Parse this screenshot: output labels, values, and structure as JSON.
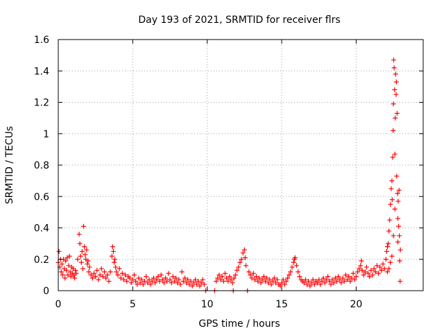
{
  "chart_data": {
    "type": "scatter",
    "title": "Day 193 of 2021, SRMTID for receiver flrs",
    "xlabel": "GPS time / hours",
    "ylabel": "SRMTID / TECUs",
    "xlim": [
      0,
      24.5
    ],
    "ylim": [
      0,
      1.6
    ],
    "x_ticks": [
      0,
      5,
      10,
      15,
      20
    ],
    "x_tick_labels": [
      "0",
      "5",
      "10",
      "15",
      "20"
    ],
    "y_ticks": [
      0,
      0.2,
      0.4,
      0.6,
      0.8,
      1.0,
      1.2,
      1.4,
      1.6
    ],
    "y_tick_labels": [
      "0",
      "0.2",
      "0.4",
      "0.6",
      "0.8",
      "1",
      "1.2",
      "1.4",
      "1.6"
    ],
    "grid": true,
    "marker": "plus",
    "series": [
      {
        "name": "flrs",
        "color": "#ff0000",
        "points": [
          [
            0.0,
            0.18
          ],
          [
            0.05,
            0.25
          ],
          [
            0.1,
            0.15
          ],
          [
            0.15,
            0.2
          ],
          [
            0.2,
            0.12
          ],
          [
            0.25,
            0.17
          ],
          [
            0.3,
            0.1
          ],
          [
            0.35,
            0.2
          ],
          [
            0.4,
            0.14
          ],
          [
            0.45,
            0.08
          ],
          [
            0.5,
            0.19
          ],
          [
            0.55,
            0.13
          ],
          [
            0.6,
            0.21
          ],
          [
            0.65,
            0.1
          ],
          [
            0.7,
            0.16
          ],
          [
            0.75,
            0.22
          ],
          [
            0.8,
            0.12
          ],
          [
            0.85,
            0.09
          ],
          [
            0.9,
            0.15
          ],
          [
            0.95,
            0.11
          ],
          [
            1.0,
            0.14
          ],
          [
            1.05,
            0.1
          ],
          [
            1.1,
            0.08
          ],
          [
            1.15,
            0.13
          ],
          [
            1.2,
            0.11
          ],
          [
            1.3,
            0.2
          ],
          [
            1.4,
            0.36
          ],
          [
            1.45,
            0.3
          ],
          [
            1.5,
            0.22
          ],
          [
            1.55,
            0.18
          ],
          [
            1.6,
            0.25
          ],
          [
            1.65,
            0.14
          ],
          [
            1.7,
            0.41
          ],
          [
            1.75,
            0.28
          ],
          [
            1.8,
            0.23
          ],
          [
            1.85,
            0.2
          ],
          [
            1.9,
            0.26
          ],
          [
            1.95,
            0.17
          ],
          [
            2.0,
            0.19
          ],
          [
            2.05,
            0.12
          ],
          [
            2.1,
            0.15
          ],
          [
            2.2,
            0.1
          ],
          [
            2.3,
            0.08
          ],
          [
            2.4,
            0.11
          ],
          [
            2.5,
            0.09
          ],
          [
            2.6,
            0.13
          ],
          [
            2.7,
            0.07
          ],
          [
            2.8,
            0.1
          ],
          [
            2.9,
            0.14
          ],
          [
            3.0,
            0.09
          ],
          [
            3.1,
            0.12
          ],
          [
            3.2,
            0.08
          ],
          [
            3.3,
            0.1
          ],
          [
            3.4,
            0.06
          ],
          [
            3.5,
            0.12
          ],
          [
            3.6,
            0.22
          ],
          [
            3.65,
            0.28
          ],
          [
            3.7,
            0.25
          ],
          [
            3.75,
            0.18
          ],
          [
            3.8,
            0.2
          ],
          [
            3.85,
            0.15
          ],
          [
            3.9,
            0.12
          ],
          [
            4.0,
            0.1
          ],
          [
            4.1,
            0.14
          ],
          [
            4.2,
            0.08
          ],
          [
            4.3,
            0.11
          ],
          [
            4.4,
            0.07
          ],
          [
            4.5,
            0.1
          ],
          [
            4.6,
            0.06
          ],
          [
            4.7,
            0.09
          ],
          [
            4.8,
            0.08
          ],
          [
            4.9,
            0.05
          ],
          [
            5.0,
            0.07
          ],
          [
            5.1,
            0.1
          ],
          [
            5.2,
            0.06
          ],
          [
            5.3,
            0.04
          ],
          [
            5.4,
            0.08
          ],
          [
            5.5,
            0.05
          ],
          [
            5.6,
            0.07
          ],
          [
            5.7,
            0.04
          ],
          [
            5.8,
            0.06
          ],
          [
            5.9,
            0.09
          ],
          [
            6.0,
            0.05
          ],
          [
            6.1,
            0.07
          ],
          [
            6.2,
            0.04
          ],
          [
            6.3,
            0.06
          ],
          [
            6.4,
            0.08
          ],
          [
            6.5,
            0.05
          ],
          [
            6.6,
            0.07
          ],
          [
            6.7,
            0.09
          ],
          [
            6.8,
            0.06
          ],
          [
            6.9,
            0.1
          ],
          [
            7.0,
            0.07
          ],
          [
            7.1,
            0.05
          ],
          [
            7.2,
            0.08
          ],
          [
            7.3,
            0.06
          ],
          [
            7.4,
            0.11
          ],
          [
            7.5,
            0.07
          ],
          [
            7.6,
            0.05
          ],
          [
            7.7,
            0.09
          ],
          [
            7.8,
            0.06
          ],
          [
            7.9,
            0.08
          ],
          [
            8.0,
            0.05
          ],
          [
            8.1,
            0.07
          ],
          [
            8.2,
            0.04
          ],
          [
            8.3,
            0.12
          ],
          [
            8.4,
            0.06
          ],
          [
            8.5,
            0.08
          ],
          [
            8.6,
            0.05
          ],
          [
            8.7,
            0.07
          ],
          [
            8.8,
            0.04
          ],
          [
            8.9,
            0.06
          ],
          [
            9.0,
            0.03
          ],
          [
            9.1,
            0.05
          ],
          [
            9.2,
            0.07
          ],
          [
            9.3,
            0.04
          ],
          [
            9.4,
            0.06
          ],
          [
            9.5,
            0.03
          ],
          [
            9.6,
            0.05
          ],
          [
            9.7,
            0.07
          ],
          [
            9.8,
            0.04
          ],
          [
            9.9,
            0.0
          ],
          [
            10.5,
            0.0
          ],
          [
            10.6,
            0.06
          ],
          [
            10.7,
            0.08
          ],
          [
            10.8,
            0.1
          ],
          [
            10.9,
            0.07
          ],
          [
            11.0,
            0.09
          ],
          [
            11.1,
            0.06
          ],
          [
            11.2,
            0.11
          ],
          [
            11.3,
            0.08
          ],
          [
            11.4,
            0.06
          ],
          [
            11.5,
            0.09
          ],
          [
            11.6,
            0.07
          ],
          [
            11.7,
            0.05
          ],
          [
            11.75,
            0.0
          ],
          [
            11.8,
            0.08
          ],
          [
            11.9,
            0.1
          ],
          [
            12.0,
            0.13
          ],
          [
            12.1,
            0.15
          ],
          [
            12.2,
            0.18
          ],
          [
            12.3,
            0.2
          ],
          [
            12.4,
            0.24
          ],
          [
            12.5,
            0.26
          ],
          [
            12.55,
            0.21
          ],
          [
            12.6,
            0.16
          ],
          [
            12.7,
            0.0
          ],
          [
            12.8,
            0.12
          ],
          [
            12.9,
            0.1
          ],
          [
            13.0,
            0.08
          ],
          [
            13.1,
            0.11
          ],
          [
            13.2,
            0.07
          ],
          [
            13.3,
            0.09
          ],
          [
            13.4,
            0.06
          ],
          [
            13.5,
            0.08
          ],
          [
            13.6,
            0.05
          ],
          [
            13.7,
            0.07
          ],
          [
            13.8,
            0.09
          ],
          [
            13.9,
            0.06
          ],
          [
            14.0,
            0.08
          ],
          [
            14.1,
            0.05
          ],
          [
            14.2,
            0.07
          ],
          [
            14.3,
            0.04
          ],
          [
            14.4,
            0.06
          ],
          [
            14.5,
            0.08
          ],
          [
            14.6,
            0.05
          ],
          [
            14.7,
            0.07
          ],
          [
            14.8,
            0.04
          ],
          [
            14.9,
            0.03
          ],
          [
            15.0,
            0.05
          ],
          [
            15.1,
            0.07
          ],
          [
            15.2,
            0.04
          ],
          [
            15.3,
            0.06
          ],
          [
            15.4,
            0.08
          ],
          [
            15.5,
            0.1
          ],
          [
            15.6,
            0.12
          ],
          [
            15.7,
            0.15
          ],
          [
            15.8,
            0.18
          ],
          [
            15.85,
            0.2
          ],
          [
            15.9,
            0.21
          ],
          [
            16.0,
            0.16
          ],
          [
            16.1,
            0.12
          ],
          [
            16.2,
            0.09
          ],
          [
            16.3,
            0.07
          ],
          [
            16.4,
            0.06
          ],
          [
            16.5,
            0.05
          ],
          [
            16.6,
            0.07
          ],
          [
            16.7,
            0.04
          ],
          [
            16.8,
            0.06
          ],
          [
            16.9,
            0.03
          ],
          [
            17.0,
            0.05
          ],
          [
            17.1,
            0.07
          ],
          [
            17.2,
            0.04
          ],
          [
            17.3,
            0.06
          ],
          [
            17.4,
            0.05
          ],
          [
            17.5,
            0.07
          ],
          [
            17.6,
            0.04
          ],
          [
            17.7,
            0.06
          ],
          [
            17.8,
            0.08
          ],
          [
            17.9,
            0.05
          ],
          [
            18.0,
            0.07
          ],
          [
            18.1,
            0.09
          ],
          [
            18.2,
            0.06
          ],
          [
            18.3,
            0.04
          ],
          [
            18.4,
            0.07
          ],
          [
            18.5,
            0.05
          ],
          [
            18.6,
            0.08
          ],
          [
            18.7,
            0.06
          ],
          [
            18.8,
            0.09
          ],
          [
            18.9,
            0.07
          ],
          [
            19.0,
            0.05
          ],
          [
            19.1,
            0.08
          ],
          [
            19.2,
            0.06
          ],
          [
            19.3,
            0.1
          ],
          [
            19.4,
            0.07
          ],
          [
            19.5,
            0.09
          ],
          [
            19.6,
            0.06
          ],
          [
            19.7,
            0.08
          ],
          [
            19.8,
            0.11
          ],
          [
            19.9,
            0.07
          ],
          [
            20.0,
            0.09
          ],
          [
            20.1,
            0.12
          ],
          [
            20.2,
            0.14
          ],
          [
            20.3,
            0.16
          ],
          [
            20.35,
            0.19
          ],
          [
            20.4,
            0.13
          ],
          [
            20.5,
            0.1
          ],
          [
            20.6,
            0.12
          ],
          [
            20.7,
            0.15
          ],
          [
            20.8,
            0.11
          ],
          [
            20.9,
            0.09
          ],
          [
            21.0,
            0.13
          ],
          [
            21.1,
            0.1
          ],
          [
            21.2,
            0.14
          ],
          [
            21.3,
            0.12
          ],
          [
            21.4,
            0.16
          ],
          [
            21.5,
            0.11
          ],
          [
            21.6,
            0.15
          ],
          [
            21.7,
            0.13
          ],
          [
            21.8,
            0.17
          ],
          [
            21.9,
            0.14
          ],
          [
            22.0,
            0.2
          ],
          [
            22.05,
            0.25
          ],
          [
            22.1,
            0.28
          ],
          [
            22.15,
            0.3
          ],
          [
            22.2,
            0.38
          ],
          [
            22.25,
            0.45
          ],
          [
            22.3,
            0.55
          ],
          [
            22.35,
            0.65
          ],
          [
            22.4,
            0.7
          ],
          [
            22.42,
            0.58
          ],
          [
            22.45,
            0.85
          ],
          [
            22.48,
            1.02
          ],
          [
            22.5,
            1.19
          ],
          [
            22.52,
            1.47
          ],
          [
            22.55,
            1.42
          ],
          [
            22.58,
            1.28
          ],
          [
            22.6,
            0.87
          ],
          [
            22.62,
            1.1
          ],
          [
            22.65,
            1.38
          ],
          [
            22.68,
            1.25
          ],
          [
            22.7,
            1.33
          ],
          [
            22.72,
            0.73
          ],
          [
            22.75,
            1.13
          ],
          [
            22.78,
            0.62
          ],
          [
            22.8,
            0.46
          ],
          [
            22.82,
            0.57
          ],
          [
            22.85,
            0.41
          ],
          [
            22.88,
            0.64
          ],
          [
            22.9,
            0.35
          ],
          [
            22.92,
            0.19
          ],
          [
            22.95,
            0.06
          ],
          [
            22.97,
            0.26
          ],
          [
            22.8,
            0.31
          ],
          [
            22.6,
            0.52
          ],
          [
            22.5,
            0.35
          ],
          [
            22.4,
            0.22
          ],
          [
            22.3,
            0.18
          ],
          [
            22.2,
            0.14
          ],
          [
            22.1,
            0.12
          ]
        ]
      }
    ]
  }
}
